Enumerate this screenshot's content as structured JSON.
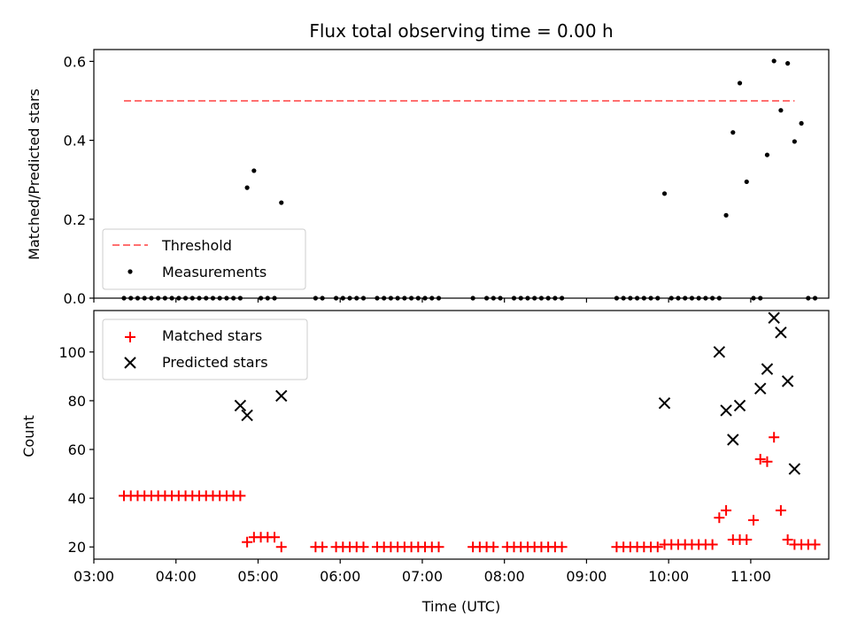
{
  "chart_data": [
    {
      "type": "scatter",
      "title": "Flux total observing time = 0.00 h",
      "xlabel": "",
      "ylabel": "Matched/Predicted stars",
      "xlim": [
        "03:00",
        "11:57"
      ],
      "ylim": [
        0.0,
        0.63
      ],
      "x_tick_labels": [
        "03:00",
        "04:00",
        "05:00",
        "06:00",
        "07:00",
        "08:00",
        "09:00",
        "10:00",
        "11:00"
      ],
      "y_tick_labels": [
        "0.0",
        "0.2",
        "0.4",
        "0.6"
      ],
      "y_ticks": [
        0.0,
        0.2,
        0.4,
        0.6
      ],
      "legend": {
        "position": "lower left",
        "entries": [
          "Threshold",
          "Measurements"
        ]
      },
      "series": [
        {
          "name": "Threshold",
          "style": "dashed-line",
          "color": "#ff7070",
          "x": [
            "03:22",
            "11:32"
          ],
          "y": [
            0.5,
            0.5
          ]
        },
        {
          "name": "Measurements",
          "style": "dot",
          "color": "#000000",
          "x": [
            "03:22",
            "03:27",
            "03:32",
            "03:37",
            "03:42",
            "03:47",
            "03:52",
            "03:57",
            "04:02",
            "04:07",
            "04:12",
            "04:17",
            "04:22",
            "04:27",
            "04:32",
            "04:37",
            "04:42",
            "04:47",
            "04:52",
            "04:57",
            "05:02",
            "05:07",
            "05:12",
            "05:17",
            "05:42",
            "05:47",
            "05:57",
            "06:02",
            "06:07",
            "06:12",
            "06:17",
            "06:27",
            "06:32",
            "06:37",
            "06:42",
            "06:47",
            "06:52",
            "06:57",
            "07:02",
            "07:07",
            "07:12",
            "07:37",
            "07:47",
            "07:52",
            "07:57",
            "08:07",
            "08:12",
            "08:17",
            "08:22",
            "08:27",
            "08:32",
            "08:37",
            "08:42",
            "09:22",
            "09:27",
            "09:32",
            "09:37",
            "09:42",
            "09:47",
            "09:52",
            "09:57",
            "10:02",
            "10:07",
            "10:12",
            "10:17",
            "10:22",
            "10:27",
            "10:32",
            "10:37",
            "10:42",
            "10:47",
            "10:52",
            "10:57",
            "11:02",
            "11:07",
            "11:12",
            "11:17",
            "11:22",
            "11:27",
            "11:32",
            "11:37",
            "11:42",
            "11:47"
          ],
          "y": [
            0.0,
            0.0,
            0.0,
            0.0,
            0.0,
            0.0,
            0.0,
            0.0,
            0.0,
            0.0,
            0.0,
            0.0,
            0.0,
            0.0,
            0.0,
            0.0,
            0.0,
            0.0,
            0.28,
            0.323,
            0.0,
            0.0,
            0.0,
            0.242,
            0.0,
            0.0,
            0.0,
            0.0,
            0.0,
            0.0,
            0.0,
            0.0,
            0.0,
            0.0,
            0.0,
            0.0,
            0.0,
            0.0,
            0.0,
            0.0,
            0.0,
            0.0,
            0.0,
            0.0,
            0.0,
            0.0,
            0.0,
            0.0,
            0.0,
            0.0,
            0.0,
            0.0,
            0.0,
            0.0,
            0.0,
            0.0,
            0.0,
            0.0,
            0.0,
            0.0,
            0.265,
            0.0,
            0.0,
            0.0,
            0.0,
            0.0,
            0.0,
            0.0,
            0.0,
            0.21,
            0.42,
            0.545,
            0.295,
            0.0,
            0.0,
            0.363,
            0.601,
            0.476,
            0.595,
            0.397,
            0.443,
            0.0,
            0.0
          ]
        }
      ]
    },
    {
      "type": "scatter",
      "title": "",
      "xlabel": "Time (UTC)",
      "ylabel": "Count",
      "xlim": [
        "03:00",
        "11:57"
      ],
      "ylim": [
        15,
        117
      ],
      "x_tick_labels": [
        "03:00",
        "04:00",
        "05:00",
        "06:00",
        "07:00",
        "08:00",
        "09:00",
        "10:00",
        "11:00"
      ],
      "y_tick_labels": [
        "20",
        "40",
        "60",
        "80",
        "100"
      ],
      "y_ticks": [
        20,
        40,
        60,
        80,
        100
      ],
      "legend": {
        "position": "upper left",
        "entries": [
          "Matched stars",
          "Predicted stars"
        ]
      },
      "series": [
        {
          "name": "Matched stars",
          "style": "plus",
          "color": "#ff0000",
          "x": [
            "03:22",
            "03:27",
            "03:32",
            "03:37",
            "03:42",
            "03:47",
            "03:52",
            "03:57",
            "04:02",
            "04:07",
            "04:12",
            "04:17",
            "04:22",
            "04:27",
            "04:32",
            "04:37",
            "04:42",
            "04:47",
            "04:52",
            "04:57",
            "05:02",
            "05:07",
            "05:12",
            "05:17",
            "05:42",
            "05:47",
            "05:57",
            "06:02",
            "06:07",
            "06:12",
            "06:17",
            "06:27",
            "06:32",
            "06:37",
            "06:42",
            "06:47",
            "06:52",
            "06:57",
            "07:02",
            "07:07",
            "07:12",
            "07:37",
            "07:42",
            "07:47",
            "07:52",
            "08:02",
            "08:07",
            "08:12",
            "08:17",
            "08:22",
            "08:27",
            "08:32",
            "08:37",
            "08:42",
            "09:22",
            "09:27",
            "09:32",
            "09:37",
            "09:42",
            "09:47",
            "09:52",
            "09:57",
            "10:02",
            "10:07",
            "10:12",
            "10:17",
            "10:22",
            "10:27",
            "10:32",
            "10:37",
            "10:42",
            "10:47",
            "10:52",
            "10:57",
            "11:02",
            "11:07",
            "11:12",
            "11:17",
            "11:22",
            "11:27",
            "11:32",
            "11:37",
            "11:42",
            "11:47"
          ],
          "y": [
            41,
            41,
            41,
            41,
            41,
            41,
            41,
            41,
            41,
            41,
            41,
            41,
            41,
            41,
            41,
            41,
            41,
            41,
            22,
            24,
            24,
            24,
            24,
            20,
            20,
            20,
            20,
            20,
            20,
            20,
            20,
            20,
            20,
            20,
            20,
            20,
            20,
            20,
            20,
            20,
            20,
            20,
            20,
            20,
            20,
            20,
            20,
            20,
            20,
            20,
            20,
            20,
            20,
            20,
            20,
            20,
            20,
            20,
            20,
            20,
            20,
            21,
            21,
            21,
            21,
            21,
            21,
            21,
            21,
            32,
            35,
            23,
            23,
            23,
            31,
            56,
            55,
            65,
            35,
            23,
            21,
            21,
            21,
            21
          ]
        },
        {
          "name": "Predicted stars",
          "style": "x",
          "color": "#000000",
          "x": [
            "04:47",
            "04:52",
            "05:17",
            "09:57",
            "10:37",
            "10:42",
            "10:47",
            "10:52",
            "11:07",
            "11:12",
            "11:17",
            "11:22",
            "11:27",
            "11:32"
          ],
          "y": [
            78,
            74,
            82,
            79,
            100,
            76,
            64,
            78,
            85,
            93,
            114,
            108,
            88,
            52
          ]
        }
      ]
    }
  ]
}
